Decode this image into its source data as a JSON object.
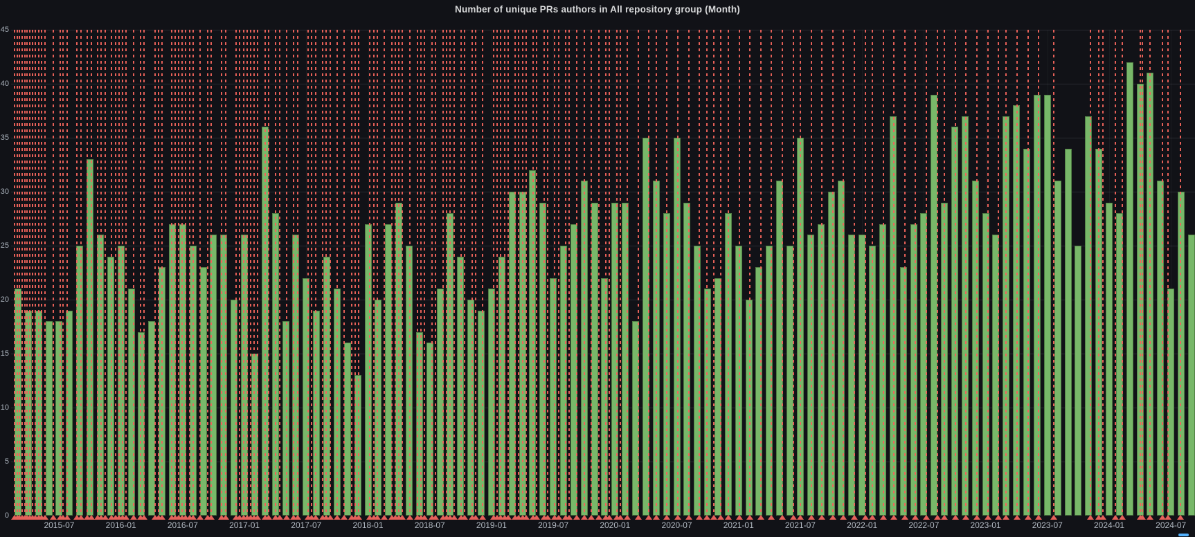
{
  "title": "Number of unique PRs authors in All repository group (Month)",
  "colors": {
    "background": "#111217",
    "bar": "#78b869",
    "annotation": "#ef655c",
    "grid": "rgba(201,209,222,0.13)",
    "axis_text": "#aab1bb",
    "title_text": "#d8d9da",
    "legend_marker": "#53b1fd"
  },
  "chart_data": {
    "type": "bar",
    "title": "Number of unique PRs authors in All repository group (Month)",
    "xlabel": "",
    "ylabel": "",
    "x_start_month": "2015-03",
    "x_end_month": "2024-09",
    "x_interval": "1 month per bar",
    "values": [
      21,
      19,
      19,
      18,
      18,
      19,
      25,
      33,
      26,
      24,
      25,
      21,
      17,
      18,
      23,
      27,
      27,
      25,
      23,
      26,
      26,
      20,
      26,
      15,
      36,
      28,
      18,
      26,
      22,
      19,
      24,
      21,
      16,
      13,
      27,
      20,
      27,
      29,
      25,
      17,
      16,
      21,
      28,
      24,
      20,
      19,
      21,
      24,
      30,
      30,
      32,
      29,
      22,
      25,
      27,
      31,
      29,
      22,
      29,
      29,
      18,
      35,
      31,
      28,
      35,
      29,
      25,
      21,
      22,
      28,
      25,
      20,
      23,
      25,
      31,
      25,
      35,
      26,
      27,
      30,
      31,
      26,
      26,
      25,
      27,
      37,
      23,
      27,
      28,
      39,
      29,
      36,
      37,
      31,
      28,
      26,
      37,
      38,
      34,
      39,
      39,
      31,
      34,
      25,
      37,
      34,
      29,
      28,
      42,
      40,
      41,
      31,
      21,
      30,
      26
    ],
    "ylim": [
      0,
      45
    ],
    "yticks": [
      0,
      5,
      10,
      15,
      20,
      25,
      30,
      35,
      40,
      45
    ],
    "xtick_labels": [
      "2015-07",
      "2016-01",
      "2016-07",
      "2017-01",
      "2017-07",
      "2018-01",
      "2018-07",
      "2019-01",
      "2019-07",
      "2020-01",
      "2020-07",
      "2021-01",
      "2021-07",
      "2022-01",
      "2022-07",
      "2023-01",
      "2023-07",
      "2024-01",
      "2024-07"
    ],
    "xtick_first_bar_index": 4,
    "xtick_step": 6,
    "grid": "horizontal gridlines on; faint vertical gridlines at 6-month ticks",
    "legend_position": "bottom (clipped out of view, only blue series marker sliver visible)",
    "bar_color": "#78b869",
    "annotation_color": "#ef655c",
    "annotation_style": "vertical red dashed lines spanning plot height with red triangle markers on x-axis",
    "annotations_month_pos": [
      -0.35,
      -0.1,
      0.15,
      0.4,
      0.65,
      0.9,
      1.15,
      1.4,
      1.7,
      2.0,
      2.3,
      2.6,
      3.4,
      4.1,
      4.35,
      4.8,
      5.75,
      6.1,
      6.75,
      7.1,
      7.75,
      8.1,
      8.45,
      9.1,
      9.45,
      9.8,
      10.15,
      10.5,
      11.2,
      11.9,
      12.25,
      13.3,
      13.65,
      14.0,
      14.9,
      15.25,
      15.6,
      15.95,
      16.3,
      16.65,
      17.0,
      17.7,
      18.4,
      18.75,
      19.8,
      20.15,
      21.2,
      21.55,
      21.9,
      22.25,
      22.6,
      22.95,
      23.3,
      24.0,
      24.35,
      25.05,
      25.4,
      26.1,
      26.8,
      27.15,
      28.2,
      28.55,
      28.9,
      29.6,
      29.95,
      30.3,
      31.0,
      31.7,
      32.4,
      32.75,
      33.1,
      34.2,
      34.55,
      34.9,
      35.6,
      36.3,
      36.65,
      37.0,
      37.35,
      38.1,
      38.8,
      39.15,
      39.5,
      40.2,
      40.55,
      41.3,
      41.65,
      42.0,
      42.35,
      43.05,
      43.4,
      44.1,
      44.45,
      45.15,
      46.2,
      46.55,
      46.9,
      47.25,
      47.6,
      48.3,
      48.65,
      49.0,
      49.35,
      50.05,
      50.4,
      51.1,
      51.45,
      52.15,
      52.5,
      53.2,
      53.55,
      54.25,
      55.0,
      55.7,
      56.4,
      57.1,
      57.45,
      58.15,
      58.5,
      59.2,
      60.25,
      61.3,
      62.0,
      63.05,
      64.1,
      65.15,
      66.2,
      66.9,
      67.6,
      68.3,
      69.0,
      70.05,
      71.1,
      72.15,
      73.2,
      74.25,
      75.3,
      76.0,
      77.05,
      78.1,
      79.15,
      80.2,
      81.25,
      82.3,
      83.0,
      84.05,
      85.1,
      86.15,
      87.2,
      88.25,
      89.3,
      90.0,
      91.05,
      92.1,
      93.15,
      94.2,
      95.25,
      96.0,
      97.05,
      98.1,
      99.15,
      100.6,
      104.2,
      105.0,
      105.4,
      106.6,
      107.3,
      109.0,
      109.25,
      110.0,
      111.2,
      111.7,
      112.9
    ]
  }
}
